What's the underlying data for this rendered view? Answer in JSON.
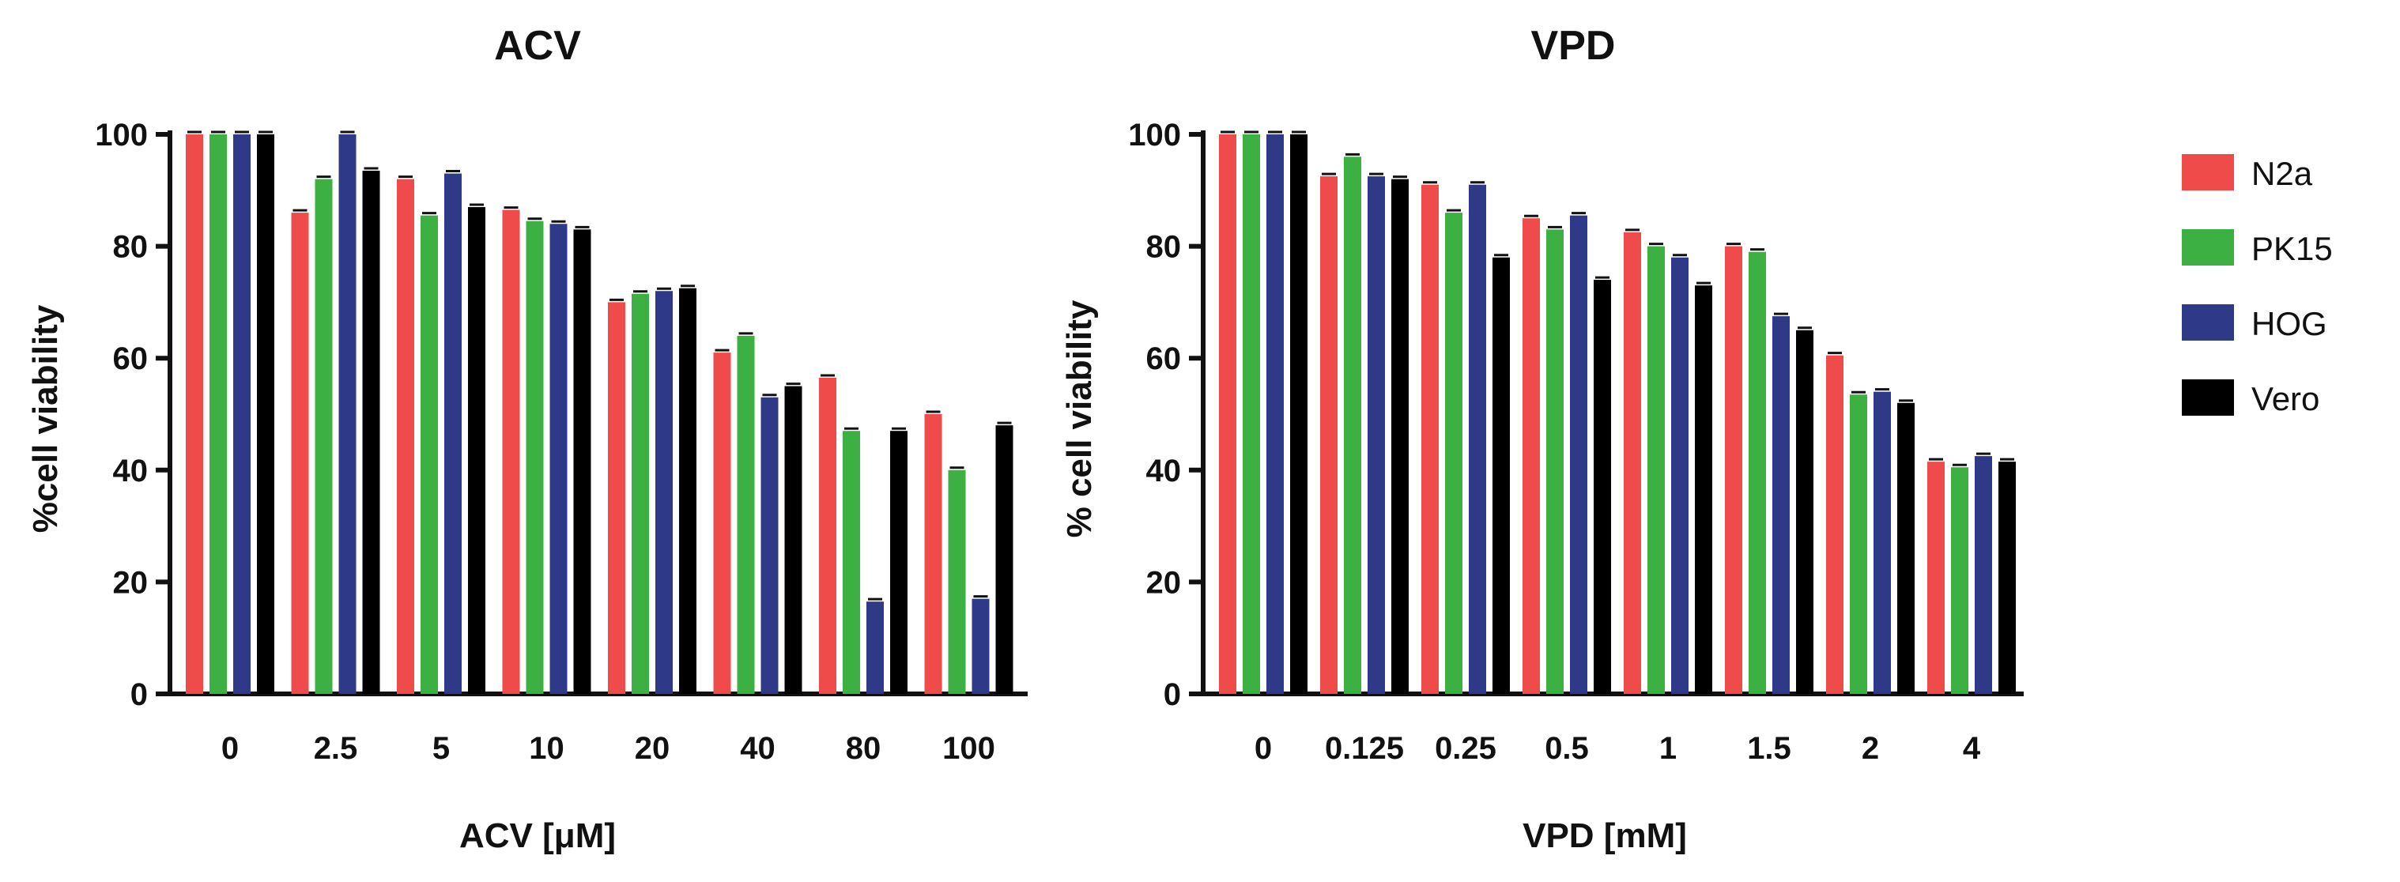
{
  "colors": {
    "N2a": "#ef4b4b",
    "PK15": "#3cb043",
    "HOG": "#2e3a87",
    "Vero": "#000000"
  },
  "legend": [
    "N2a",
    "PK15",
    "HOG",
    "Vero"
  ],
  "chart_data": [
    {
      "type": "bar",
      "title": "ACV",
      "xlabel": "ACV [μM]",
      "ylabel": "%cell viability",
      "ylim": [
        0,
        100
      ],
      "yticks": [
        0,
        20,
        40,
        60,
        80,
        100
      ],
      "categories": [
        "0",
        "2.5",
        "5",
        "10",
        "20",
        "40",
        "80",
        "100"
      ],
      "series": [
        {
          "name": "N2a",
          "values": [
            100,
            86,
            92,
            86.5,
            70,
            61,
            56.5,
            50
          ]
        },
        {
          "name": "PK15",
          "values": [
            100,
            92,
            85.5,
            84.5,
            71.5,
            64,
            47,
            40
          ]
        },
        {
          "name": "HOG",
          "values": [
            100,
            100,
            93,
            84,
            72,
            53,
            16.5,
            17
          ]
        },
        {
          "name": "Vero",
          "values": [
            100,
            93.5,
            87,
            83,
            72.5,
            55,
            47,
            48
          ]
        }
      ]
    },
    {
      "type": "bar",
      "title": "VPD",
      "xlabel": "VPD [mM]",
      "ylabel": "% cell viability",
      "ylim": [
        0,
        100
      ],
      "yticks": [
        0,
        20,
        40,
        60,
        80,
        100
      ],
      "categories": [
        "0",
        "0.125",
        "0.25",
        "0.5",
        "1",
        "1.5",
        "2",
        "4"
      ],
      "series": [
        {
          "name": "N2a",
          "values": [
            100,
            92.5,
            91,
            85,
            82.5,
            80,
            60.5,
            41.5
          ]
        },
        {
          "name": "PK15",
          "values": [
            100,
            96,
            86,
            83,
            80,
            79,
            53.5,
            40.5
          ]
        },
        {
          "name": "HOG",
          "values": [
            100,
            92.5,
            91,
            85.5,
            78,
            67.5,
            54,
            42.5
          ]
        },
        {
          "name": "Vero",
          "values": [
            100,
            92,
            78,
            74,
            73,
            65,
            52,
            41.5
          ]
        }
      ]
    }
  ]
}
